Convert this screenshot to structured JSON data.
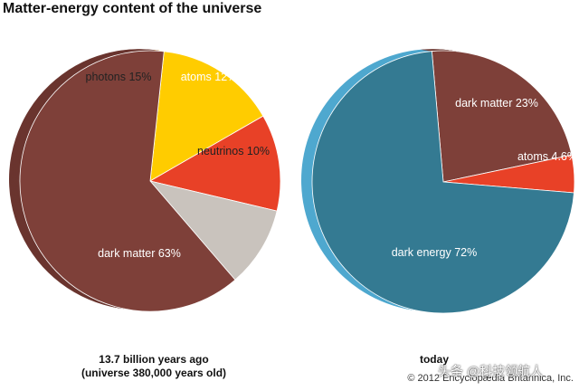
{
  "chart_data": {
    "title": "Matter-energy content of the universe",
    "pies": [
      {
        "type": "pie",
        "caption": [
          "13.7 billion years ago",
          "(universe 380,000 years old)"
        ],
        "slices": [
          {
            "label": "photons 15%",
            "value": 15,
            "color": "#FFCC00",
            "side_color": "#F2B33D",
            "label_color": "#222222"
          },
          {
            "label": "atoms 12%",
            "value": 12,
            "color": "#E84127",
            "side_color": "#B93320",
            "label_color": "#ffffff"
          },
          {
            "label": "neutrinos 10%",
            "value": 10,
            "color": "#C9C3BD",
            "side_color": "#9A948E",
            "label_color": "#222222"
          },
          {
            "label": "dark matter 63%",
            "value": 63,
            "color": "#7E4039",
            "side_color": "#6A352F",
            "label_color": "#ffffff"
          }
        ]
      },
      {
        "type": "pie",
        "caption": [
          "today"
        ],
        "slices": [
          {
            "label": "dark matter 23%",
            "value": 23,
            "color": "#7E4039",
            "side_color": "#6A352F",
            "label_color": "#ffffff"
          },
          {
            "label": "atoms 4.6%",
            "value": 4.6,
            "color": "#E84127",
            "side_color": "#B93320",
            "label_color": "#ffffff"
          },
          {
            "label": "dark energy 72%",
            "value": 72,
            "color": "#347A92",
            "side_color": "#4FA8CF",
            "label_color": "#ffffff"
          }
        ]
      }
    ]
  },
  "copyright": "© 2012 Encyclopædia Britannica, Inc.",
  "watermark": "头条 @科技领航人"
}
